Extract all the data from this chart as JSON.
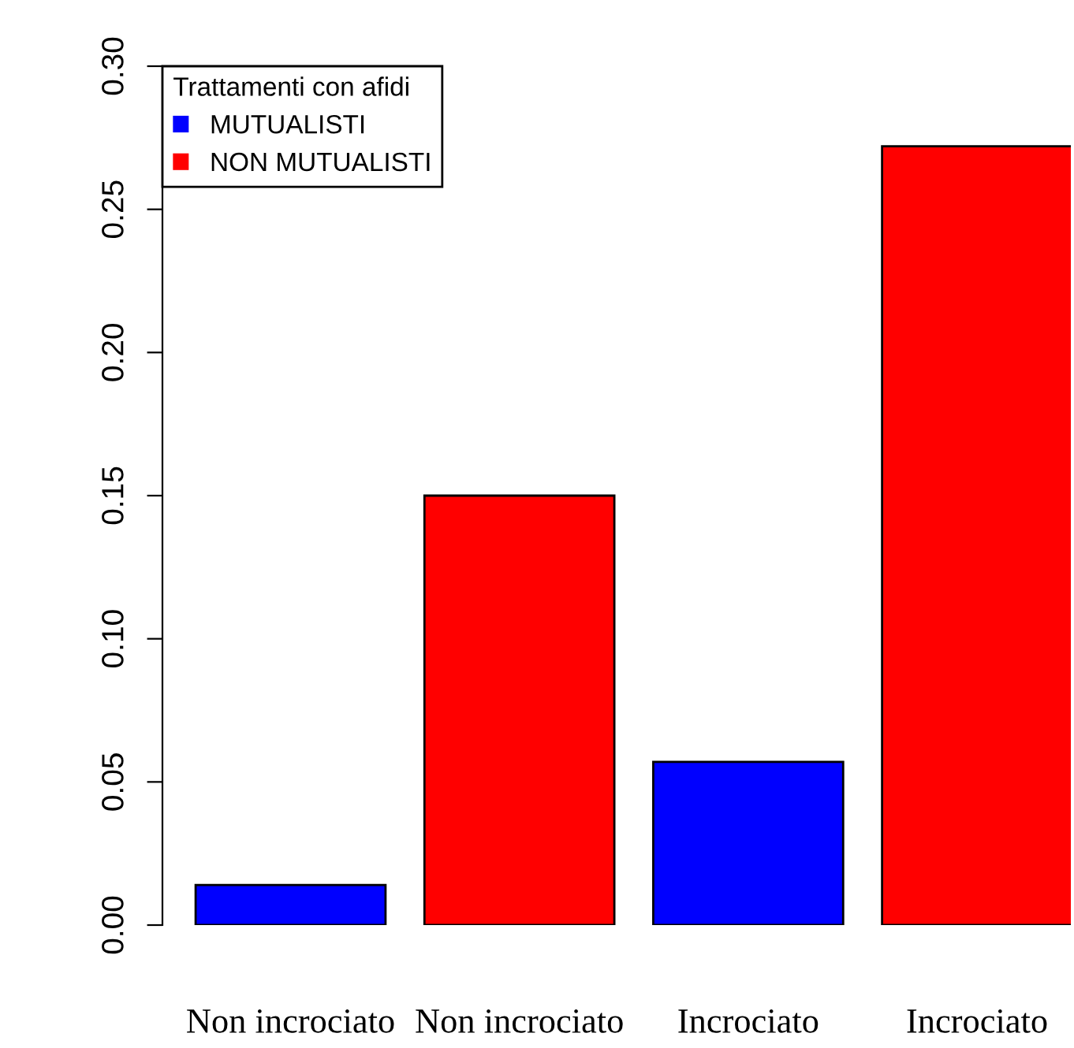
{
  "chart_data": {
    "type": "bar",
    "categories": [
      "Non incrociato",
      "Non incrociato",
      "Incrociato",
      "Incrociato"
    ],
    "series": [
      {
        "name": "MUTUALISTI",
        "color": "#0000ff",
        "values": [
          0.014,
          null,
          0.057,
          null
        ]
      },
      {
        "name": "NON MUTUALISTI",
        "color": "#ff0000",
        "values": [
          null,
          0.15,
          null,
          0.272
        ]
      }
    ],
    "legend_title": "Trattamenti con afidi",
    "legend": "top left",
    "ylim": [
      0,
      0.3
    ],
    "yticks": [
      {
        "value": 0,
        "label": "0.00"
      },
      {
        "value": 0.05,
        "label": "0.05"
      },
      {
        "value": 0.1,
        "label": "0.10"
      },
      {
        "value": 0.15,
        "label": "0.15"
      },
      {
        "value": 0.2,
        "label": "0.20"
      },
      {
        "value": 0.25,
        "label": "0.25"
      },
      {
        "value": 0.3,
        "label": "0.30"
      }
    ],
    "grid": false
  }
}
